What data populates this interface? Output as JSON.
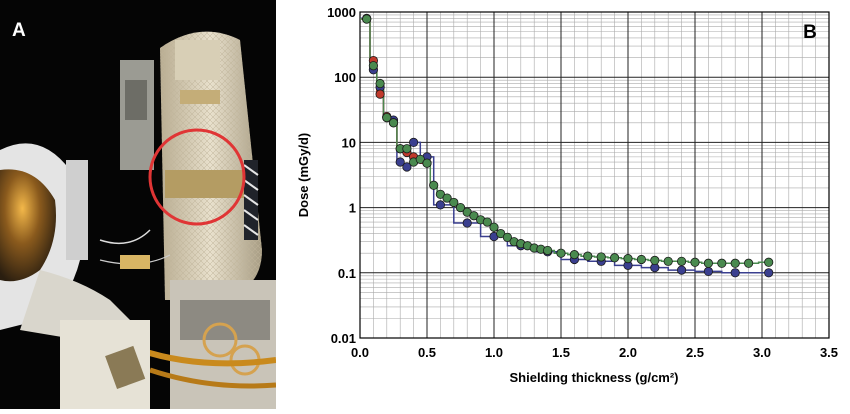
{
  "panel_a": {
    "letter": "A"
  },
  "panel_b": {
    "letter": "B"
  },
  "colors": {
    "navy": "#3a3f8f",
    "red": "#c0392b",
    "green": "#4a8a4f",
    "gridline": "#aaaaaa",
    "highlight_circle": "#e03535"
  },
  "chart_data": {
    "type": "line",
    "xlabel": "Shielding thickness (g/cm²)",
    "ylabel": "Dose (mGy/d)",
    "xlim": [
      0,
      3.5
    ],
    "ylim": [
      0.01,
      1000
    ],
    "y_scale": "log",
    "grid": true,
    "x_ticks": [
      "0.0",
      "0.5",
      "1.0",
      "1.5",
      "2.0",
      "2.5",
      "3.0",
      "3.5"
    ],
    "y_ticks": [
      "0.01",
      "0.1",
      "1",
      "10",
      "100",
      "1000"
    ],
    "series": [
      {
        "color": "#3a3f8f",
        "x": [
          0.05,
          0.1,
          0.15,
          0.2,
          0.25,
          0.3,
          0.35,
          0.4,
          0.5,
          0.6,
          0.8,
          1.0,
          1.2,
          1.4,
          1.6,
          1.8,
          2.0,
          2.2,
          2.4,
          2.6,
          2.8,
          3.05
        ],
        "y": [
          800,
          130,
          70,
          24,
          22,
          5,
          4.2,
          10,
          6,
          1.1,
          0.58,
          0.36,
          0.26,
          0.21,
          0.16,
          0.15,
          0.13,
          0.12,
          0.11,
          0.105,
          0.1,
          0.1
        ]
      },
      {
        "color": "#c0392b",
        "x": [
          0.05,
          0.1,
          0.15,
          0.2,
          0.25,
          0.3,
          0.35,
          0.4,
          0.5
        ],
        "y": [
          780,
          180,
          55,
          25,
          20,
          8,
          7,
          6,
          4.8
        ]
      },
      {
        "color": "#4a8a4f",
        "x": [
          0.05,
          0.1,
          0.15,
          0.2,
          0.25,
          0.3,
          0.35,
          0.4,
          0.45,
          0.5,
          0.55,
          0.6,
          0.65,
          0.7,
          0.75,
          0.8,
          0.85,
          0.9,
          0.95,
          1.0,
          1.05,
          1.1,
          1.15,
          1.2,
          1.25,
          1.3,
          1.35,
          1.4,
          1.5,
          1.6,
          1.7,
          1.8,
          1.9,
          2.0,
          2.1,
          2.2,
          2.3,
          2.4,
          2.5,
          2.6,
          2.7,
          2.8,
          2.9,
          3.05
        ],
        "y": [
          780,
          150,
          80,
          24,
          20,
          8,
          8,
          5,
          5.5,
          4.8,
          2.2,
          1.6,
          1.4,
          1.2,
          1.0,
          0.85,
          0.75,
          0.65,
          0.6,
          0.5,
          0.4,
          0.35,
          0.3,
          0.28,
          0.26,
          0.24,
          0.23,
          0.22,
          0.2,
          0.19,
          0.18,
          0.175,
          0.17,
          0.165,
          0.16,
          0.155,
          0.15,
          0.15,
          0.145,
          0.14,
          0.14,
          0.14,
          0.14,
          0.145
        ]
      }
    ]
  }
}
